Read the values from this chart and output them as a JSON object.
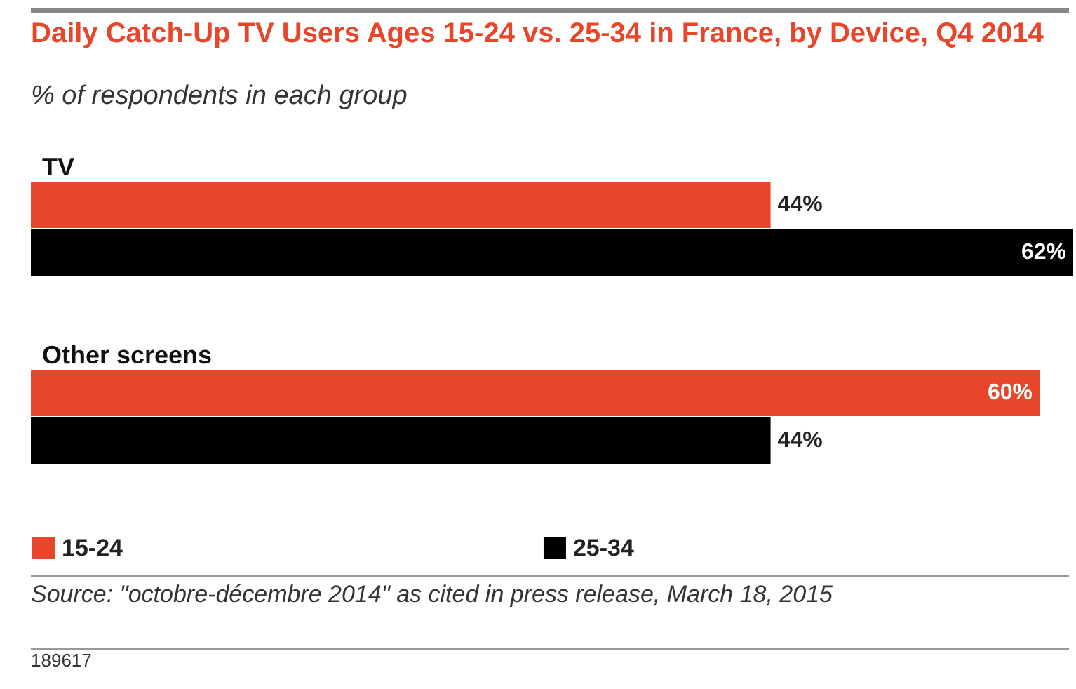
{
  "chart_data": {
    "type": "bar",
    "orientation": "horizontal",
    "title": "Daily Catch-Up TV Users Ages 15-24 vs. 25-34 in France, by Device, Q4 2014",
    "subtitle": "% of respondents in each group",
    "categories": [
      "TV",
      "Other screens"
    ],
    "series": [
      {
        "name": "15-24",
        "color": "#e8462a",
        "values": [
          44,
          60
        ],
        "value_labels": [
          "44%",
          "60%"
        ]
      },
      {
        "name": "25-34",
        "color": "#000000",
        "values": [
          62,
          44
        ],
        "value_labels": [
          "62%",
          "44%"
        ]
      }
    ],
    "legend": "bottom left",
    "annotations": [
      "Source: \"octobre-décembre 2014\" as cited in press release, March 18, 2015",
      "189617"
    ]
  }
}
